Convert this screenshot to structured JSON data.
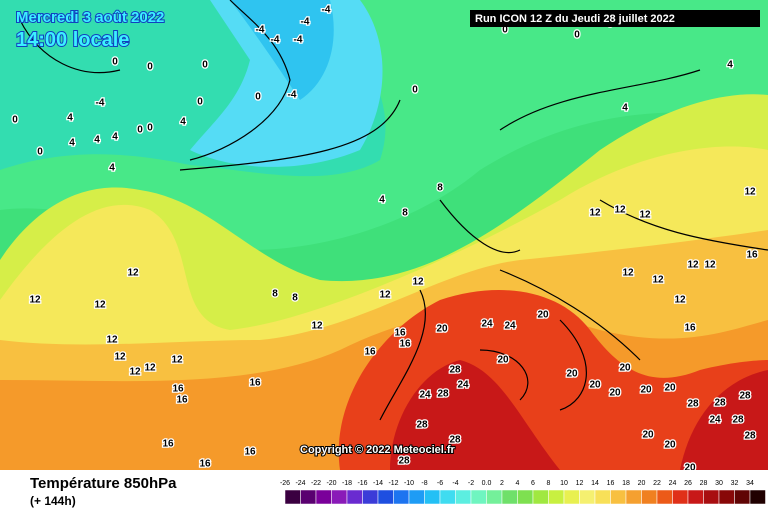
{
  "header": {
    "date": "Mercredi 3 août 2022",
    "time": "14:00 locale",
    "run": "Run ICON 12 Z du Jeudi 28 juillet 2022"
  },
  "footer": {
    "title": "Température 850hPa",
    "lead": "(+ 144h)",
    "copyright": "Copyright © 2022 Meteociel.fr"
  },
  "color_scale": {
    "labels": [
      "-26",
      "-24",
      "-22",
      "-20",
      "-18",
      "-16",
      "-14",
      "-12",
      "-10",
      "-8",
      "-6",
      "-4",
      "-2",
      "0.0",
      "2",
      "4",
      "6",
      "8",
      "10",
      "12",
      "14",
      "16",
      "18",
      "20",
      "22",
      "24",
      "26",
      "28",
      "30",
      "32",
      "34"
    ],
    "colors": [
      "#3a0040",
      "#5a0070",
      "#7a009a",
      "#8a1ab8",
      "#6a2bd0",
      "#3b3bd8",
      "#1e4fe0",
      "#1d74f0",
      "#1e9cf5",
      "#23c0f5",
      "#3fdcf0",
      "#5ceee0",
      "#6ff5c0",
      "#74f09a",
      "#6fe06a",
      "#7ee050",
      "#a0e840",
      "#c8f040",
      "#e8f050",
      "#f5f070",
      "#f8e058",
      "#f8c040",
      "#f5a030",
      "#f08020",
      "#ec5a18",
      "#e03018",
      "#c81818",
      "#a80e10",
      "#880808",
      "#600404",
      "#200000"
    ]
  },
  "contour_labels": [
    "-4",
    "-4",
    "-4",
    "-4",
    "-4",
    "0",
    "-4",
    "0",
    "0",
    "0",
    "-4",
    "4",
    "4",
    "4",
    "4",
    "0",
    "0",
    "4",
    "0",
    "0",
    "0",
    "4",
    "0",
    "4",
    "8",
    "8",
    "8",
    "8",
    "12",
    "12",
    "12",
    "12",
    "12",
    "12",
    "12",
    "12",
    "12",
    "12",
    "12",
    "16",
    "16",
    "16",
    "16",
    "16",
    "16",
    "16",
    "16",
    "16",
    "20",
    "24",
    "24",
    "20",
    "20",
    "28",
    "24",
    "24",
    "28",
    "28",
    "28",
    "28",
    "20",
    "20",
    "20",
    "20",
    "20",
    "20",
    "28",
    "28",
    "28",
    "24",
    "28",
    "28",
    "20",
    "20",
    "20",
    "12",
    "12",
    "12",
    "12",
    "12",
    "12",
    "12",
    "16",
    "12",
    "16",
    "12",
    "4",
    "4",
    "0",
    "0",
    "0"
  ]
}
